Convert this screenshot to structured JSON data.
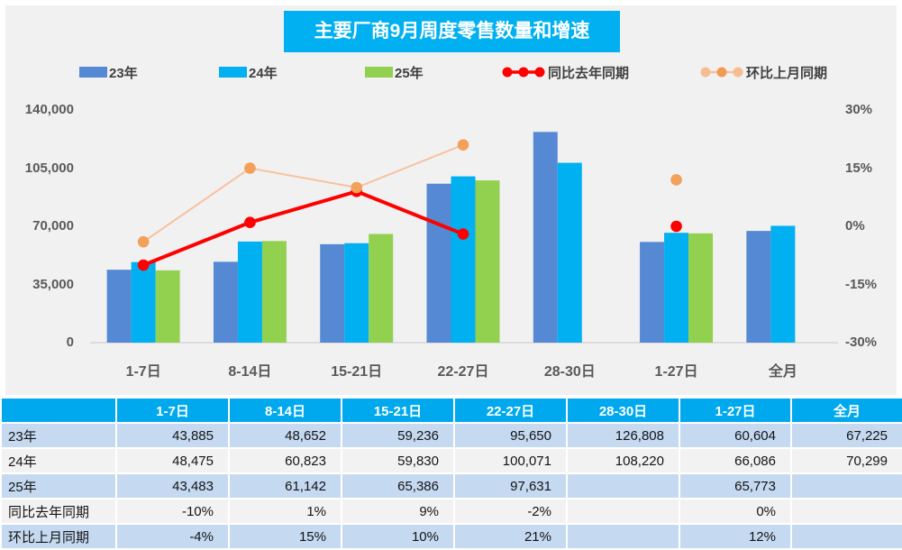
{
  "title": "主要厂商9月周度零售数量和增速",
  "colors": {
    "title_bg": "#00b0f0",
    "header_bg": "#00a9ed",
    "bar_blue": "#5689d3",
    "bar_cyan": "#00b0f0",
    "bar_green": "#92d050",
    "line_red": "#fe0000",
    "line_orange": "#f8c19b",
    "marker_orange": "#f2a05a",
    "row_blue": "#c5d9f1",
    "row_gray": "#f2f2f2",
    "axis_text": "#595959",
    "panel_bg": "#f1f1f2"
  },
  "legend": [
    {
      "label": "23年",
      "type": "bar",
      "color": "#5689d3"
    },
    {
      "label": "24年",
      "type": "bar",
      "color": "#00b0f0"
    },
    {
      "label": "25年",
      "type": "bar",
      "color": "#92d050"
    },
    {
      "label": "同比去年同期",
      "type": "line",
      "color": "#fe0000",
      "marker": "#fe0000"
    },
    {
      "label": "环比上月同期",
      "type": "line",
      "color": "#f8c19b",
      "marker": "#f2a05a"
    }
  ],
  "chart_data": {
    "type": "bar+line combo",
    "categories": [
      "1-7日",
      "8-14日",
      "15-21日",
      "22-27日",
      "28-30日",
      "1-27日",
      "全月"
    ],
    "bar_series": [
      {
        "name": "23年",
        "color": "#5689d3",
        "values": [
          43885,
          48652,
          59236,
          95650,
          126808,
          60604,
          67225
        ]
      },
      {
        "name": "24年",
        "color": "#00b0f0",
        "values": [
          48475,
          60823,
          59830,
          100071,
          108220,
          66086,
          70299
        ]
      },
      {
        "name": "25年",
        "color": "#92d050",
        "values": [
          43483,
          61142,
          65386,
          97631,
          null,
          65773,
          null
        ]
      }
    ],
    "line_series": [
      {
        "name": "同比去年同期",
        "color": "#fe0000",
        "marker": "#fe0000",
        "axis": "right",
        "values": [
          -10,
          1,
          9,
          -2,
          null,
          0,
          null
        ]
      },
      {
        "name": "环比上月同期",
        "color": "#f8c19b",
        "marker": "#f2a05a",
        "axis": "right",
        "values": [
          -4,
          15,
          10,
          21,
          null,
          12,
          null
        ]
      }
    ],
    "left_axis": {
      "label_ticks": [
        "140,000",
        "105,000",
        "70,000",
        "35,000",
        "0"
      ],
      "min": 0,
      "max": 140000
    },
    "right_axis": {
      "label_ticks": [
        "30%",
        "15%",
        "0%",
        "-15%",
        "-30%"
      ],
      "min": -30,
      "max": 30
    },
    "grid": "off",
    "legend_position": "top"
  },
  "table": {
    "header": [
      "",
      "1-7日",
      "8-14日",
      "15-21日",
      "22-27日",
      "28-30日",
      "1-27日",
      "全月"
    ],
    "rows": [
      {
        "label": "23年",
        "cells": [
          "43,885",
          "48,652",
          "59,236",
          "95,650",
          "126,808",
          "60,604",
          "67,225"
        ]
      },
      {
        "label": "24年",
        "cells": [
          "48,475",
          "60,823",
          "59,830",
          "100,071",
          "108,220",
          "66,086",
          "70,299"
        ]
      },
      {
        "label": "25年",
        "cells": [
          "43,483",
          "61,142",
          "65,386",
          "97,631",
          "",
          "65,773",
          ""
        ]
      },
      {
        "label": "同比去年同期",
        "cells": [
          "-10%",
          "1%",
          "9%",
          "-2%",
          "",
          "0%",
          ""
        ]
      },
      {
        "label": "环比上月同期",
        "cells": [
          "-4%",
          "15%",
          "10%",
          "21%",
          "",
          "12%",
          ""
        ]
      }
    ]
  }
}
